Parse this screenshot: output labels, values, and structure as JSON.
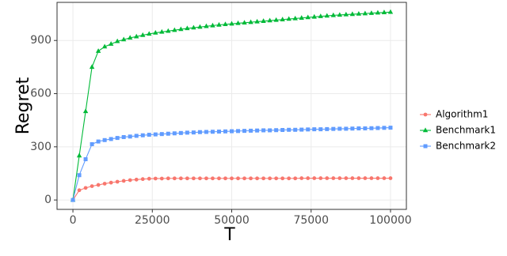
{
  "chart_data": {
    "type": "line",
    "xlabel": "T",
    "ylabel": "Regret",
    "x": [
      0,
      2000,
      4000,
      6000,
      8000,
      10000,
      12000,
      14000,
      16000,
      18000,
      20000,
      22000,
      24000,
      26000,
      28000,
      30000,
      32000,
      34000,
      36000,
      38000,
      40000,
      42000,
      44000,
      46000,
      48000,
      50000,
      52000,
      54000,
      56000,
      58000,
      60000,
      62000,
      64000,
      66000,
      68000,
      70000,
      72000,
      74000,
      76000,
      78000,
      80000,
      82000,
      84000,
      86000,
      88000,
      90000,
      92000,
      94000,
      96000,
      98000,
      100000
    ],
    "series": [
      {
        "name": "Algorithm1",
        "color": "#F8766D",
        "marker": "circle",
        "values": [
          0,
          55,
          68,
          78,
          85,
          92,
          98,
          103,
          108,
          112,
          115,
          118,
          120,
          121,
          121,
          122,
          122,
          122,
          122,
          122,
          122,
          122,
          122,
          122,
          122,
          122,
          122,
          122,
          122,
          122,
          122,
          122,
          122,
          122,
          122,
          122,
          123,
          123,
          123,
          123,
          123,
          123,
          123,
          123,
          123,
          123,
          123,
          123,
          123,
          123,
          123
        ]
      },
      {
        "name": "Benchmark1",
        "color": "#00BA38",
        "marker": "triangle",
        "values": [
          0,
          250,
          500,
          750,
          840,
          865,
          880,
          895,
          905,
          915,
          922,
          930,
          937,
          943,
          948,
          953,
          958,
          963,
          968,
          972,
          976,
          980,
          984,
          988,
          991,
          994,
          997,
          1000,
          1003,
          1006,
          1009,
          1012,
          1015,
          1018,
          1021,
          1024,
          1027,
          1030,
          1033,
          1036,
          1039,
          1042,
          1044,
          1046,
          1048,
          1050,
          1052,
          1054,
          1056,
          1058,
          1060
        ]
      },
      {
        "name": "Benchmark2",
        "color": "#619CFF",
        "marker": "square",
        "values": [
          0,
          140,
          230,
          315,
          330,
          338,
          344,
          350,
          355,
          358,
          362,
          365,
          368,
          370,
          372,
          374,
          376,
          378,
          380,
          381,
          383,
          384,
          385,
          386,
          387,
          388,
          389,
          390,
          391,
          392,
          393,
          393,
          394,
          395,
          396,
          396,
          397,
          398,
          399,
          399,
          400,
          401,
          402,
          402,
          403,
          404,
          404,
          405,
          406,
          407,
          408
        ]
      }
    ],
    "xlim": [
      -5000,
      105000
    ],
    "ylim": [
      -53,
      1115
    ],
    "xticks": [
      0,
      25000,
      50000,
      75000,
      100000
    ],
    "yticks": [
      0,
      300,
      600,
      900
    ],
    "grid": true,
    "legend": "right"
  }
}
